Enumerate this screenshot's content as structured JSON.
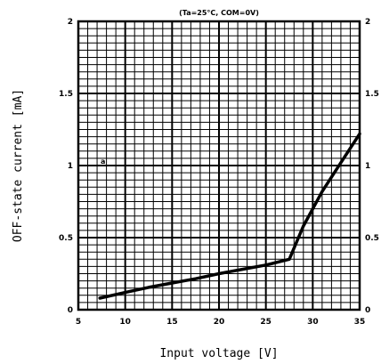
{
  "chart_data": {
    "type": "line",
    "title": "(Ta=25°C, COM=0V)",
    "xlabel": "Input voltage [V]",
    "ylabel": "OFF-state current [mA]",
    "xlim": [
      5,
      35
    ],
    "ylim": [
      0,
      2
    ],
    "x_ticks": [
      "5",
      "10",
      "15",
      "20",
      "25",
      "30",
      "35"
    ],
    "y_ticks": [
      "0",
      "0.5",
      "1",
      "1.5",
      "2"
    ],
    "y_ticks_right": [
      "0",
      "0.5",
      "1",
      "1.5",
      "2"
    ],
    "grid": true,
    "annotation": "a",
    "series": [
      {
        "x": [
          7.3,
          10,
          12.5,
          15,
          17.5,
          20,
          22.5,
          25,
          27.5,
          29,
          31,
          33,
          35
        ],
        "y": [
          0.08,
          0.12,
          0.155,
          0.185,
          0.215,
          0.25,
          0.28,
          0.31,
          0.35,
          0.58,
          0.82,
          1.02,
          1.22
        ]
      }
    ]
  }
}
